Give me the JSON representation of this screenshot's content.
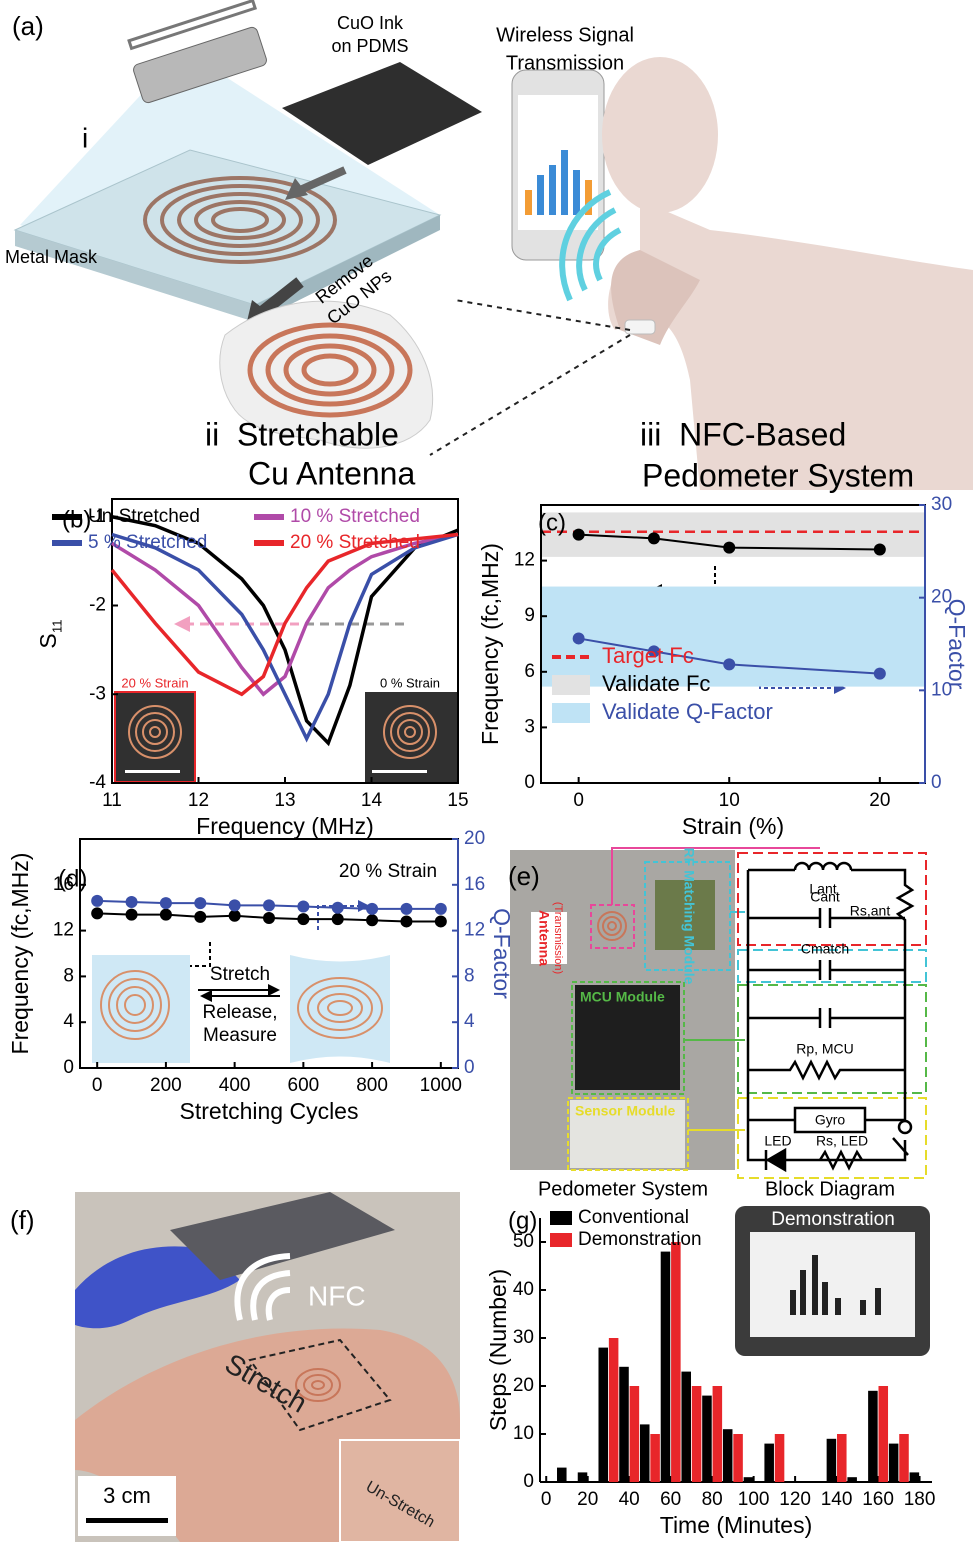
{
  "panel_a": {
    "label": "(a)",
    "step_i": "i",
    "ink": [
      "CuO Ink",
      "on PDMS"
    ],
    "wireless": [
      "Wireless Signal",
      "Transmission"
    ],
    "mask": "Metal Mask",
    "remove": [
      "Remove",
      "CuO NPs"
    ],
    "antenna": [
      "ii  Stretchable",
      "Cu Antenna"
    ],
    "system": [
      "iii  NFC-Based",
      "Pedometer System"
    ]
  },
  "panel_e": {
    "label": "(e)",
    "antenna": "Antenna",
    "transmission": "(Transmission)",
    "rf": "RF Matching Module",
    "mcu": "MCU Module",
    "sensor": "Sensor Module",
    "components": {
      "lant": "Lant",
      "rs_ant": "Rs,ant",
      "cant": "Cant",
      "cmatch": "Cmatch",
      "rp_mcu": "Rp, MCU",
      "gyro": "Gyro",
      "led": "LED",
      "rs_led": "Rs, LED"
    },
    "captions": [
      "Pedometer System",
      "Block Diagram"
    ]
  },
  "panel_f": {
    "label": "(f)",
    "nfc": "NFC",
    "stretch": "Stretch",
    "unstretch": "Un-Stretch",
    "scale": "3 cm"
  },
  "chart_data": [
    {
      "type": "line",
      "panel_label": "(b)",
      "x_label": "Frequency (MHz)",
      "y_label": "S",
      "y_label_sub": "11",
      "x": [
        11,
        11.5,
        12,
        12.5,
        12.75,
        13,
        13.25,
        13.5,
        13.75,
        14,
        14.5,
        15
      ],
      "xlim": [
        11,
        15
      ],
      "ylim": [
        -4,
        -0.8
      ],
      "xticks": [
        11,
        12,
        13,
        14,
        15
      ],
      "yticks": [
        -4,
        -3,
        -2,
        -1
      ],
      "series": [
        {
          "name": "Un-Stretched",
          "color": "#000000",
          "values": [
            -1.0,
            -1.1,
            -1.3,
            -1.7,
            -2.0,
            -2.5,
            -3.3,
            -3.55,
            -2.9,
            -1.9,
            -1.35,
            -1.15
          ]
        },
        {
          "name": "10 % Stretched",
          "color": "#b04aa8",
          "values": [
            -1.3,
            -1.6,
            -2.0,
            -2.7,
            -3.0,
            -2.8,
            -2.2,
            -1.8,
            -1.6,
            -1.45,
            -1.3,
            -1.2
          ]
        },
        {
          "name": "5 % Stretched",
          "color": "#3a4fa8",
          "values": [
            -1.2,
            -1.35,
            -1.6,
            -2.1,
            -2.5,
            -3.0,
            -3.5,
            -3.0,
            -2.2,
            -1.65,
            -1.35,
            -1.2
          ]
        },
        {
          "name": "20 % Stretched",
          "color": "#e8262a",
          "values": [
            -1.6,
            -2.2,
            -2.75,
            -3.0,
            -2.8,
            -2.2,
            -1.8,
            -1.5,
            -1.4,
            -1.3,
            -1.25,
            -1.2
          ]
        }
      ],
      "annotations": [
        {
          "text": "20 % Strain",
          "color": "#e8262a"
        },
        {
          "text": "0 % Strain",
          "color": "#000000"
        }
      ]
    },
    {
      "type": "line",
      "panel_label": "(c)",
      "x_label": "Strain (%)",
      "y_label": "Frequency (fc,MHz)",
      "y2_label": "Q-Factor",
      "x": [
        0,
        5,
        10,
        20
      ],
      "xlim": [
        -2.5,
        23
      ],
      "ylim": [
        0,
        15
      ],
      "y2lim": [
        0,
        30
      ],
      "xticks": [
        0,
        10,
        20
      ],
      "yticks": [
        0,
        3,
        6,
        9,
        12
      ],
      "y2ticks": [
        0,
        10,
        20,
        30
      ],
      "markers": true,
      "series": [
        {
          "color": "#000000",
          "values": [
            13.4,
            13.2,
            12.7,
            12.6
          ]
        },
        {
          "color": "#3a4fa8",
          "axis": "y2",
          "values": [
            15.6,
            14.2,
            12.8,
            11.8
          ]
        }
      ],
      "reference_lines": [
        {
          "name": "Target Fc",
          "value": 13.56,
          "color": "#e8262a"
        }
      ],
      "bands": [
        {
          "name": "Validate Fc",
          "range": [
            12.2,
            14.6
          ],
          "color": "#e2e2e2"
        },
        {
          "name": "Validate Q-Factor",
          "range": [
            10.4,
            21.2
          ],
          "axis": "y2",
          "color": "#bfe3f5"
        }
      ]
    },
    {
      "type": "line",
      "panel_label": "(d)",
      "x_label": "Stretching Cycles",
      "y_label": "Frequency (fc,MHz)",
      "y2_label": "Q-Factor",
      "x": [
        0,
        100,
        200,
        300,
        400,
        500,
        600,
        700,
        800,
        900,
        1000
      ],
      "xlim": [
        -50,
        1050
      ],
      "ylim": [
        0,
        20
      ],
      "y2lim": [
        0,
        20
      ],
      "xticks": [
        0,
        200,
        400,
        600,
        800,
        1000
      ],
      "yticks": [
        0,
        4,
        8,
        12,
        16
      ],
      "y2ticks": [
        0,
        4,
        8,
        12,
        16,
        20
      ],
      "markers": true,
      "series": [
        {
          "color": "#000000",
          "values": [
            13.5,
            13.4,
            13.4,
            13.2,
            13.3,
            13.1,
            13.0,
            13.0,
            12.9,
            12.8,
            12.8
          ]
        },
        {
          "color": "#3a4fa8",
          "axis": "y2",
          "values": [
            14.6,
            14.5,
            14.4,
            14.4,
            14.2,
            14.2,
            14.1,
            14.0,
            13.9,
            13.9,
            13.9
          ]
        }
      ],
      "annotations": [
        {
          "text": "20 % Strain",
          "color": "#000000"
        },
        {
          "text": "Stretch",
          "color": "#000000"
        },
        {
          "text": "Release,",
          "color": "#000000"
        },
        {
          "text": "Measure",
          "color": "#000000"
        }
      ]
    },
    {
      "type": "bar",
      "panel_label": "(g)",
      "x_label": "Time (Minutes)",
      "y_label": "Steps (Number)",
      "inset_title": "Demonstration",
      "x": [
        10,
        20,
        30,
        40,
        50,
        60,
        70,
        80,
        90,
        100,
        110,
        120,
        130,
        140,
        150,
        160,
        170,
        180
      ],
      "xlim": [
        -3,
        186
      ],
      "ylim": [
        0,
        55
      ],
      "xticks": [
        0,
        20,
        40,
        60,
        80,
        100,
        120,
        140,
        160,
        180
      ],
      "yticks": [
        0,
        10,
        20,
        30,
        40,
        50
      ],
      "series": [
        {
          "name": "Conventional",
          "color": "#000000",
          "values": [
            3,
            2,
            28,
            24,
            12,
            48,
            23,
            18,
            11,
            1,
            8,
            0,
            0,
            9,
            1,
            19,
            8,
            2
          ]
        },
        {
          "name": "Demonstration",
          "color": "#e8262a",
          "values": [
            0,
            0,
            30,
            20,
            10,
            50,
            20,
            20,
            10,
            0,
            10,
            0,
            0,
            10,
            0,
            20,
            10,
            0
          ]
        }
      ]
    }
  ]
}
